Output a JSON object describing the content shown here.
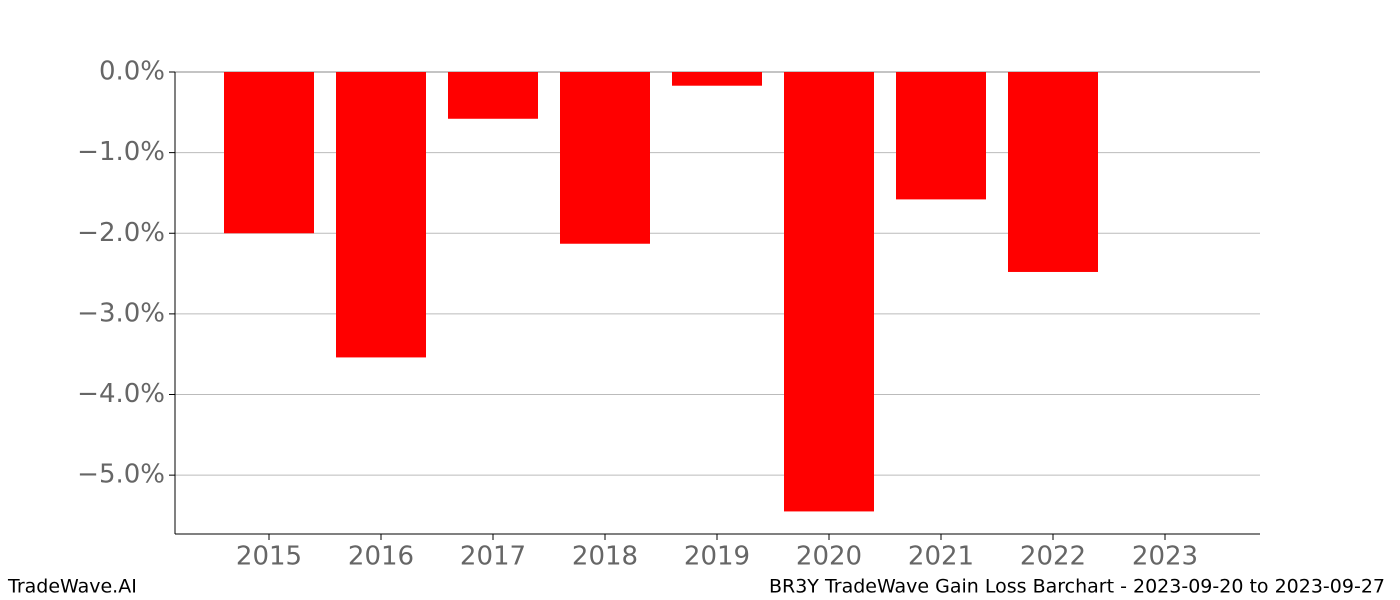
{
  "chart_data": {
    "type": "bar",
    "categories": [
      "2015",
      "2016",
      "2017",
      "2018",
      "2019",
      "2020",
      "2021",
      "2022",
      "2023"
    ],
    "values": [
      -2.0,
      -3.54,
      -0.58,
      -2.13,
      -0.17,
      -5.45,
      -1.58,
      -2.48,
      null
    ],
    "color": "#ff0000",
    "ylim": [
      -5.73,
      0
    ],
    "yticks": [
      {
        "value": 0,
        "label": "0.0%"
      },
      {
        "value": -1,
        "label": "−1.0%"
      },
      {
        "value": -2,
        "label": "−2.0%"
      },
      {
        "value": -3,
        "label": "−3.0%"
      },
      {
        "value": -4,
        "label": "−4.0%"
      },
      {
        "value": -5,
        "label": "−5.0%"
      }
    ],
    "grid": true,
    "footer_left": "TradeWave.AI",
    "footer_right": "BR3Y TradeWave Gain Loss Barchart - 2023-09-20 to 2023-09-27"
  }
}
